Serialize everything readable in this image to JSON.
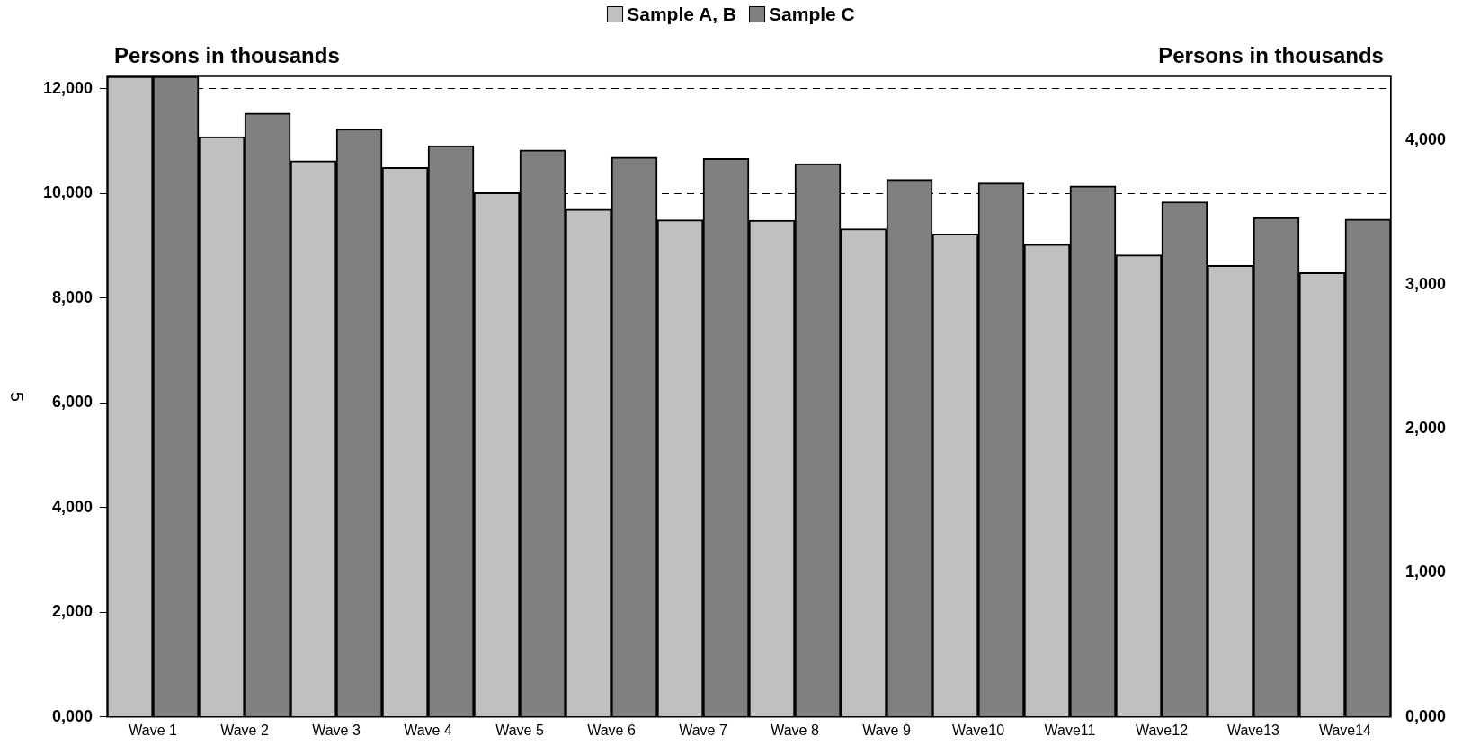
{
  "chart_data": {
    "type": "bar",
    "ylabel": "Persons in thousands",
    "y2label": "Persons in thousands",
    "categories": [
      "Wave 1",
      "Wave 2",
      "Wave 3",
      "Wave 4",
      "Wave 5",
      "Wave 6",
      "Wave 7",
      "Wave 8",
      "Wave 9",
      "Wave10",
      "Wave11",
      "Wave12",
      "Wave13",
      "Wave14"
    ],
    "series": [
      {
        "name": "Sample A, B",
        "color": "#c0c0c0",
        "values": [
          12.24,
          11.09,
          10.63,
          10.5,
          10.02,
          9.7,
          9.5,
          9.49,
          9.33,
          9.23,
          9.03,
          8.83,
          8.63,
          8.49
        ]
      },
      {
        "name": "Sample C",
        "color": "#808080",
        "axis": "y2",
        "values": [
          4.445,
          4.19,
          4.08,
          3.965,
          3.935,
          3.885,
          3.875,
          3.84,
          3.73,
          3.705,
          3.685,
          3.575,
          3.465,
          3.455
        ]
      }
    ],
    "ylim": [
      0,
      12.24
    ],
    "yticks": [
      {
        "value": 0,
        "label": "0,000"
      },
      {
        "value": 2,
        "label": "2,000"
      },
      {
        "value": 4,
        "label": "4,000"
      },
      {
        "value": 6,
        "label": "6,000"
      },
      {
        "value": 8,
        "label": "8,000"
      },
      {
        "value": 10,
        "label": "10,000"
      },
      {
        "value": 12,
        "label": "12,000"
      }
    ],
    "y2lim": [
      0,
      4.445
    ],
    "y2ticks": [
      {
        "value": 0,
        "label": "0,000"
      },
      {
        "value": 1,
        "label": "1,000"
      },
      {
        "value": 2,
        "label": "2,000"
      },
      {
        "value": 3,
        "label": "3,000"
      },
      {
        "value": 4,
        "label": "4,000"
      }
    ],
    "grid": "y",
    "legend": "top",
    "annotations": [
      "5"
    ]
  }
}
